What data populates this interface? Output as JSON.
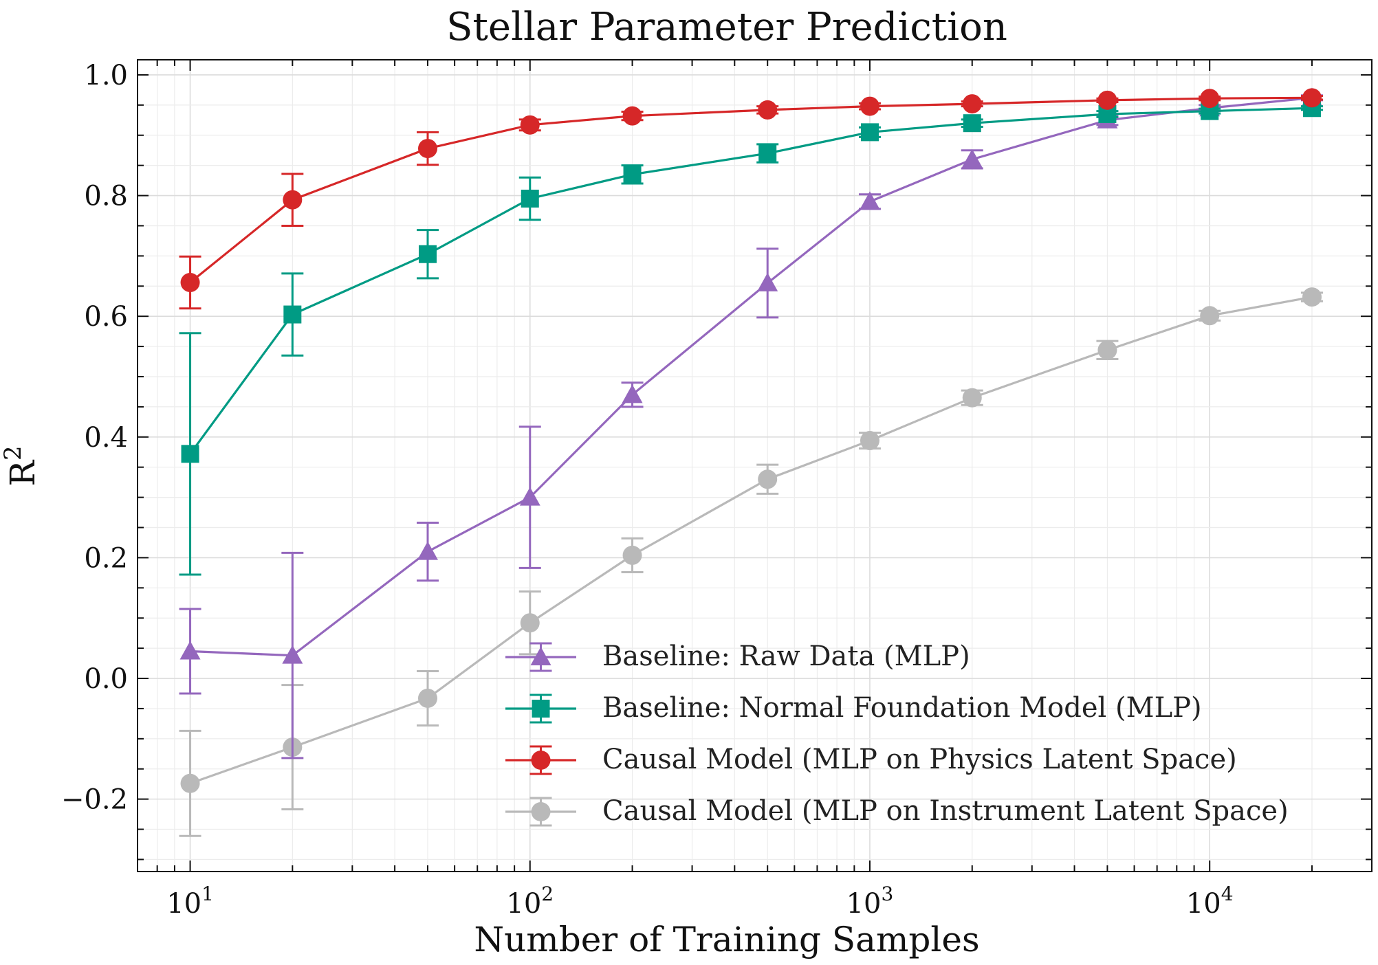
{
  "chart_data": {
    "type": "line",
    "title": "Stellar Parameter Prediction",
    "xlabel": "Number of Training Samples",
    "ylabel": "R",
    "ylabel_superscript": "2",
    "x_scale": "log",
    "xlim": [
      7,
      30000
    ],
    "ylim": [
      -0.32,
      1.025
    ],
    "grid": true,
    "legend_position": "lower-right",
    "x": [
      10,
      20,
      50,
      100,
      200,
      500,
      1000,
      2000,
      5000,
      10000,
      20000
    ],
    "x_ticks": [
      {
        "value": 10,
        "base": "10",
        "exp": "1"
      },
      {
        "value": 100,
        "base": "10",
        "exp": "2"
      },
      {
        "value": 1000,
        "base": "10",
        "exp": "3"
      },
      {
        "value": 10000,
        "base": "10",
        "exp": "4"
      }
    ],
    "y_ticks": [
      {
        "value": -0.2,
        "label": "−0.2"
      },
      {
        "value": 0.0,
        "label": "0.0"
      },
      {
        "value": 0.2,
        "label": "0.2"
      },
      {
        "value": 0.4,
        "label": "0.4"
      },
      {
        "value": 0.6,
        "label": "0.6"
      },
      {
        "value": 0.8,
        "label": "0.8"
      },
      {
        "value": 1.0,
        "label": "1.0"
      }
    ],
    "series": [
      {
        "name": "Baseline: Raw Data (MLP)",
        "color": "#9467bd",
        "marker": "triangle",
        "values": [
          0.045,
          0.038,
          0.21,
          0.3,
          0.47,
          0.655,
          0.79,
          0.86,
          0.925,
          0.945,
          0.962
        ],
        "errors": [
          0.07,
          0.17,
          0.048,
          0.117,
          0.02,
          0.057,
          0.012,
          0.015,
          0.008,
          0.005,
          0.004
        ]
      },
      {
        "name": "Baseline: Normal Foundation Model (MLP)",
        "color": "#009b84",
        "marker": "square",
        "values": [
          0.372,
          0.603,
          0.703,
          0.795,
          0.835,
          0.87,
          0.905,
          0.92,
          0.935,
          0.94,
          0.945
        ],
        "errors": [
          0.2,
          0.068,
          0.04,
          0.035,
          0.015,
          0.015,
          0.008,
          0.006,
          0.005,
          0.004,
          0.003
        ]
      },
      {
        "name": "Causal Model (MLP on Physics Latent Space)",
        "color": "#d62728",
        "marker": "circle",
        "values": [
          0.656,
          0.793,
          0.878,
          0.917,
          0.932,
          0.942,
          0.948,
          0.952,
          0.958,
          0.961,
          0.962
        ],
        "errors": [
          0.043,
          0.043,
          0.027,
          0.009,
          0.007,
          0.006,
          0.005,
          0.004,
          0.003,
          0.003,
          0.003
        ]
      },
      {
        "name": "Causal Model (MLP on Instrument Latent Space)",
        "color": "#b9b9b9",
        "marker": "circle",
        "values": [
          -0.174,
          -0.114,
          -0.033,
          0.092,
          0.204,
          0.33,
          0.394,
          0.465,
          0.544,
          0.601,
          0.632
        ],
        "errors": [
          0.087,
          0.103,
          0.045,
          0.052,
          0.028,
          0.024,
          0.013,
          0.012,
          0.015,
          0.008,
          0.007
        ]
      }
    ]
  }
}
